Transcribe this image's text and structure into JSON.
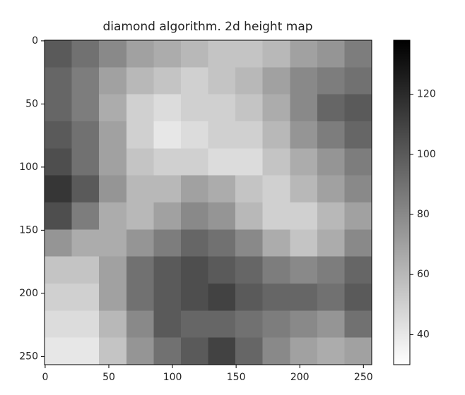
{
  "chart_data": {
    "type": "heatmap",
    "title": "diamond algorithm. 2d height map",
    "colormap": "gray_r",
    "xlim": [
      -0.5,
      256.5
    ],
    "ylim": [
      256.5,
      -0.5
    ],
    "xticks": [
      0,
      50,
      100,
      150,
      200,
      250
    ],
    "yticks": [
      0,
      50,
      100,
      150,
      200,
      250
    ],
    "clim": [
      30,
      138
    ],
    "colorbar_ticks": [
      40,
      60,
      80,
      100,
      120
    ],
    "z": [
      [
        100,
        90,
        80,
        70,
        65,
        60,
        55,
        55,
        60,
        70,
        75,
        85
      ],
      [
        95,
        85,
        70,
        60,
        55,
        50,
        55,
        60,
        70,
        80,
        85,
        90
      ],
      [
        95,
        85,
        65,
        50,
        45,
        50,
        50,
        55,
        65,
        80,
        95,
        100
      ],
      [
        100,
        90,
        70,
        50,
        40,
        45,
        50,
        50,
        60,
        75,
        85,
        95
      ],
      [
        105,
        90,
        70,
        55,
        50,
        50,
        45,
        45,
        55,
        65,
        75,
        85
      ],
      [
        115,
        100,
        75,
        60,
        60,
        70,
        65,
        55,
        50,
        60,
        70,
        80
      ],
      [
        105,
        85,
        65,
        60,
        70,
        80,
        75,
        60,
        50,
        50,
        60,
        70
      ],
      [
        75,
        65,
        65,
        75,
        85,
        95,
        90,
        80,
        65,
        55,
        65,
        80
      ],
      [
        55,
        55,
        70,
        90,
        100,
        105,
        100,
        95,
        85,
        80,
        85,
        95
      ],
      [
        50,
        50,
        70,
        90,
        100,
        105,
        110,
        100,
        95,
        95,
        90,
        100
      ],
      [
        45,
        45,
        60,
        80,
        100,
        95,
        95,
        90,
        85,
        80,
        75,
        90
      ],
      [
        40,
        40,
        55,
        75,
        90,
        100,
        110,
        95,
        80,
        70,
        65,
        70
      ]
    ]
  }
}
